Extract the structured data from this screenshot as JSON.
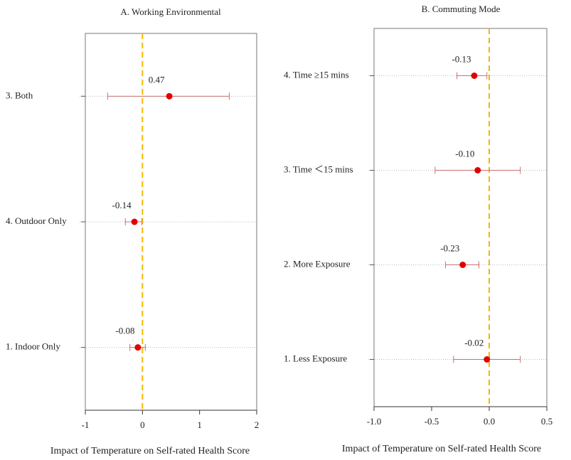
{
  "chart_data": [
    {
      "type": "forest",
      "title": "A. Working Environmental",
      "x_label": "Impact of Temperature on Self-rated Health Score",
      "categories": [
        "3. Both",
        "4. Outdoor Only",
        "1. Indoor Only"
      ],
      "values": [
        0.47,
        -0.14,
        -0.08
      ],
      "ci_low": [
        -0.61,
        -0.3,
        -0.22
      ],
      "ci_high": [
        1.52,
        -0.01,
        0.05
      ],
      "color": "#e00000",
      "ci_color": "#c87070",
      "xlim": [
        -1,
        2
      ],
      "xticks": [
        -1,
        0,
        1,
        2
      ],
      "reference_line": 0,
      "reference_color": "#f5b800"
    },
    {
      "type": "forest",
      "title": "B. Commuting Mode",
      "x_label": "Impact of Temperature on Self-rated Health Score",
      "categories": [
        "4. Time ≥15 mins",
        "3. Time ＜15 mins",
        "2. More Exposure",
        "1. Less Exposure"
      ],
      "values": [
        -0.13,
        -0.1,
        -0.23,
        -0.02
      ],
      "value_labels": [
        "-0.13",
        "-0.10",
        "-0.23",
        "-0.02"
      ],
      "ci_low": [
        -0.28,
        -0.47,
        -0.38,
        -0.31
      ],
      "ci_high": [
        -0.02,
        0.27,
        -0.09,
        0.27
      ],
      "color": "#e00000",
      "ci_color": "#c87070",
      "xlim": [
        -1,
        0.5
      ],
      "xticks": [
        {
          "value": -1,
          "label": "-1.0"
        },
        -0.5,
        {
          "value": 0,
          "label": "0.0"
        },
        0.5
      ],
      "reference_line": 0,
      "reference_color": "#f5b800"
    }
  ]
}
